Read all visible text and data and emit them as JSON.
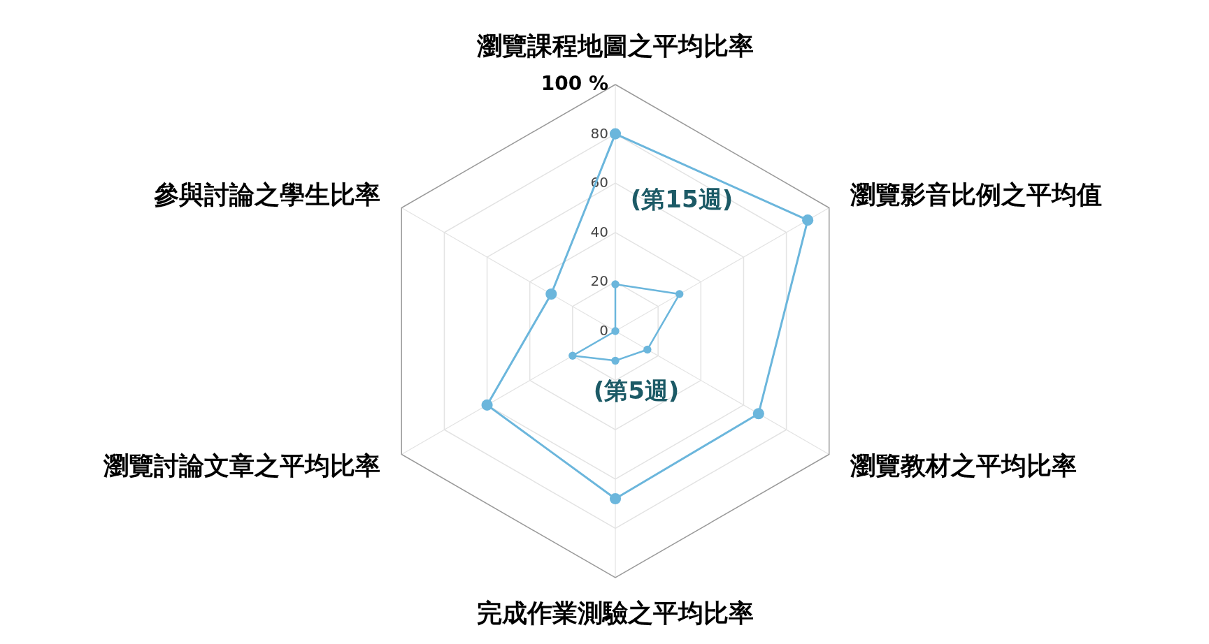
{
  "chart_data": {
    "type": "radar",
    "categories": [
      "瀏覽課程地圖之平均比率",
      "瀏覽影音比例之平均值",
      "瀏覽教材之平均比率",
      "完成作業測驗之平均比率",
      "瀏覽討論文章之平均比率",
      "參與討論之學生比率"
    ],
    "series": [
      {
        "name": "(第15週)",
        "color": "#6bb6dc",
        "values": [
          80,
          90,
          67,
          68,
          60,
          30
        ]
      },
      {
        "name": "(第5週)",
        "color": "#6bb6dc",
        "values": [
          19,
          30,
          15,
          12,
          20,
          0
        ]
      }
    ],
    "ylim": [
      0,
      100
    ],
    "yticks": [
      0,
      20,
      40,
      60,
      80,
      {
        "value": 100,
        "label": "100 %"
      }
    ],
    "grid": true,
    "marker": "circle"
  }
}
